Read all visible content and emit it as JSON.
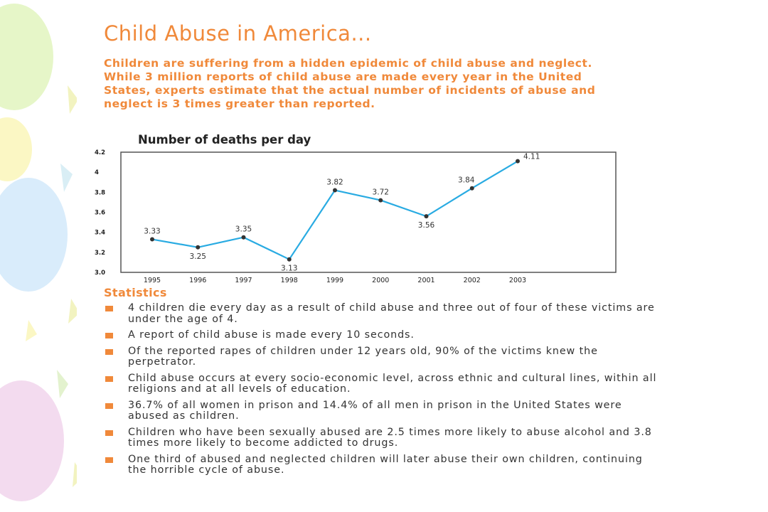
{
  "title": "Child Abuse in America...",
  "intro": "Children are suffering from a hidden epidemic of child abuse and neglect. While 3 million reports of child abuse are made every year in the United States, experts estimate that the actual number of incidents of abuse and neglect is 3 times greater than reported.",
  "chart_data": {
    "type": "line",
    "title": "Number of deaths per day",
    "categories": [
      "1995",
      "1996",
      "1997",
      "1998",
      "1999",
      "2000",
      "2001",
      "2002",
      "2003"
    ],
    "values": [
      3.33,
      3.25,
      3.35,
      3.13,
      3.82,
      3.72,
      3.56,
      3.84,
      4.11
    ],
    "value_labels": [
      "3.33",
      "3.25",
      "3.35",
      "3.13",
      "3.82",
      "3.72",
      "3.56",
      "3.84",
      "4.11"
    ],
    "yticks": [
      "3.0",
      "3.2",
      "3.4",
      "3.6",
      "3.8",
      "4",
      "4.2"
    ],
    "ylim": [
      3.0,
      4.2
    ],
    "grid": false,
    "line_color": "#29abe2",
    "marker_color": "#333333"
  },
  "statistics": {
    "heading": "Statistics",
    "items": [
      "4 children die every day as a result of child abuse and three out of four of these victims are under the age of 4.",
      "A report of child abuse is made every 10 seconds.",
      "Of the reported rapes of children under 12 years old, 90% of the victims knew the perpetrator.",
      "Child abuse occurs at every socio-economic level, across ethnic and cultural lines, within all religions and at all levels of education.",
      "36.7% of all women in prison and 14.4% of all men in prison in the United States were abused as children.",
      "Children who have been sexually abused are 2.5 times more likely to abuse alcohol and 3.8 times more likely to become addicted to drugs.",
      "One third of abused and neglected children will later abuse their own children, continuing the horrible cycle of abuse."
    ]
  },
  "colors": {
    "accent": "#f0893a",
    "text": "#333333"
  }
}
